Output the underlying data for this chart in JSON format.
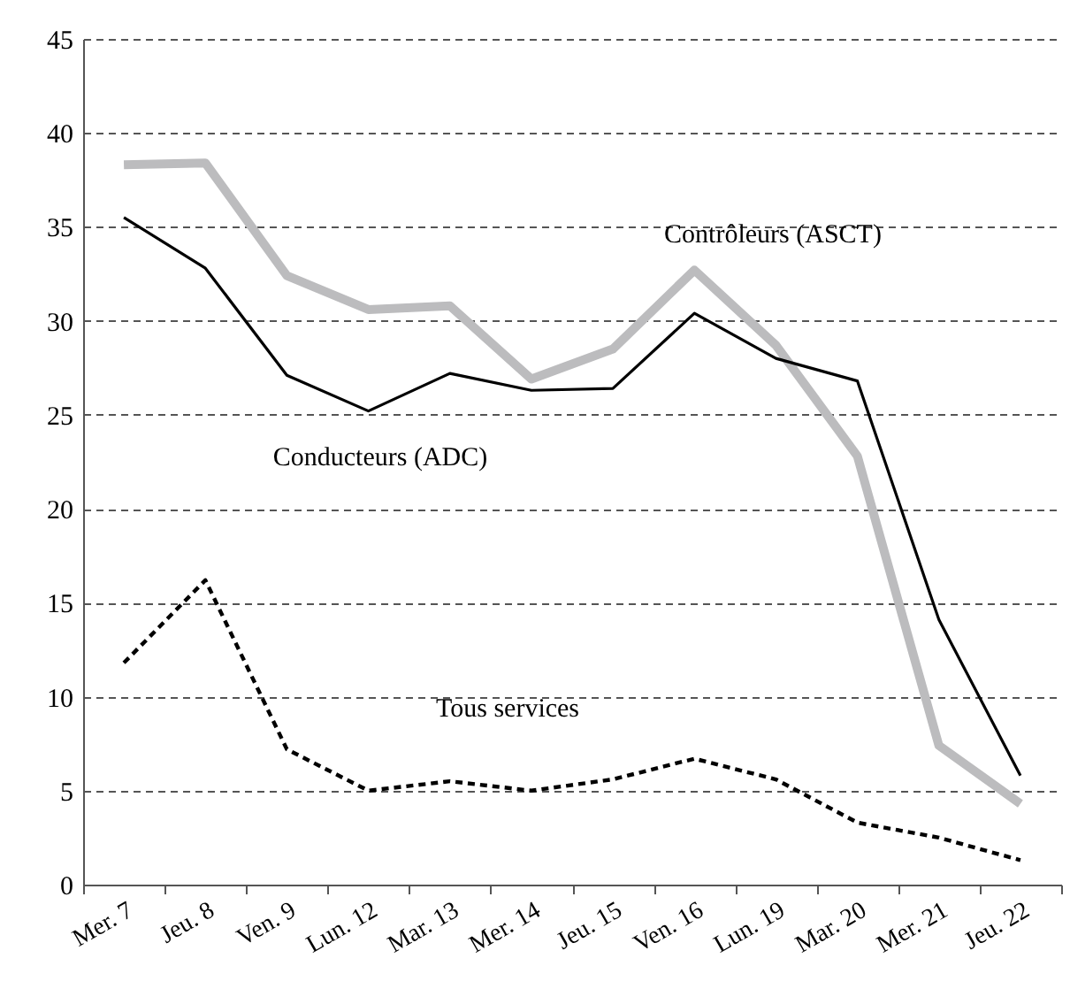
{
  "chart_data": {
    "type": "line",
    "categories": [
      "Mer. 7",
      "Jeu. 8",
      "Ven. 9",
      "Lun. 12",
      "Mar. 13",
      "Mer. 14",
      "Jeu. 15",
      "Ven. 16",
      "Lun. 19",
      "Mar. 20",
      "Mer. 21",
      "Jeu. 22"
    ],
    "series": [
      {
        "name": "Contrôleurs (ASCT)",
        "color": "#bcbcbe",
        "line_style": "solid",
        "values": [
          38.3,
          38.4,
          32.4,
          30.6,
          30.8,
          26.9,
          28.5,
          32.7,
          28.7,
          22.8,
          7.4,
          4.3
        ]
      },
      {
        "name": "Conducteurs (ADC)",
        "color": "#000000",
        "line_style": "solid",
        "values": [
          35.5,
          32.8,
          27.1,
          25.2,
          27.2,
          26.3,
          26.4,
          30.4,
          28.0,
          26.8,
          14.1,
          5.8
        ]
      },
      {
        "name": "Tous services",
        "color": "#000000",
        "line_style": "dashed",
        "values": [
          11.8,
          16.2,
          7.2,
          5.0,
          5.5,
          5.0,
          5.6,
          6.7,
          5.6,
          3.3,
          2.5,
          1.3
        ]
      }
    ],
    "ylim": [
      0,
      45
    ],
    "yticks": [
      0,
      5,
      10,
      15,
      20,
      25,
      30,
      35,
      40,
      45
    ],
    "grid": "y"
  }
}
